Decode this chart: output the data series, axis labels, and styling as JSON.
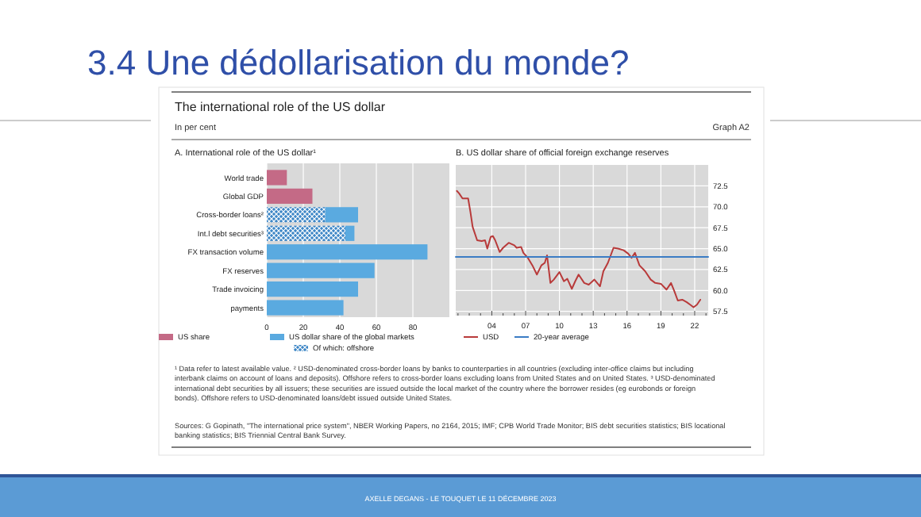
{
  "chart_data": [
    {
      "type": "bar",
      "orientation": "horizontal",
      "stacked": true,
      "title": "A. International role of the US dollar¹",
      "categories": [
        "World trade",
        "Global GDP",
        "Cross-border loans²",
        "Int.l debt securities³",
        "FX transaction volume",
        "FX reserves",
        "Trade invoicing",
        "payments"
      ],
      "series": [
        {
          "name": "US share",
          "color": "#c46a86",
          "values": [
            11,
            25,
            null,
            null,
            null,
            null,
            null,
            null
          ]
        },
        {
          "name": "Of which: offshore",
          "color": "#3d86c6",
          "values": [
            null,
            null,
            32,
            43,
            null,
            null,
            null,
            null
          ]
        },
        {
          "name": "US dollar share of the global markets",
          "color": "#5aaae0",
          "values": [
            null,
            null,
            18,
            5,
            88,
            59,
            50,
            42
          ]
        }
      ],
      "xlim": [
        0,
        100
      ],
      "xticks": [
        0,
        20,
        40,
        60,
        80
      ],
      "grid": "x",
      "legend": "bottom",
      "annotations": [
        "3.4 Une dédollarisation du monde?",
        "The international role of the US dollar",
        "In per cent",
        "Graph A2",
        "¹ Data refer to latest available value.   ² USD-denominated cross-border loans by banks to counterparties in all countries (excluding inter-office claims but including interbank claims on account of loans and deposits). Offshore refers to cross-border loans excluding loans from United States and on United States.   ³ USD-denominated international debt securities by all issuers; these securities are issued outside the local market of the country where the borrower resides (eg eurobonds or foreign bonds). Offshore refers to USD-denominated loans/debt issued outside United States.",
        "Sources: G Gopinath, \"The international price system\", NBER Working Papers, no 2164, 2015; IMF; CPB World Trade Monitor; BIS debt securities statistics; BIS locational banking statistics; BIS Triennial Central Bank Survey.",
        "AXELLE DEGANS - LE TOUQUET LE 11 DÉCEMBRE 2023"
      ]
    },
    {
      "type": "line",
      "title": "B. US dollar share of official foreign exchange reserves",
      "series": [
        {
          "name": "USD",
          "color": "#b83a3a",
          "x": [
            2000.9,
            2001.1,
            2001.4,
            2001.9,
            2002.1,
            2002.3,
            2002.7,
            2003.1,
            2003.4,
            2003.6,
            2003.9,
            2004.1,
            2004.3,
            2004.7,
            2005.0,
            2005.5,
            2006.0,
            2006.2,
            2006.6,
            2006.8,
            2007.2,
            2007.6,
            2008.0,
            2008.4,
            2008.7,
            2008.9,
            2009.2,
            2009.5,
            2010.0,
            2010.4,
            2010.7,
            2011.1,
            2011.4,
            2011.7,
            2012.2,
            2012.6,
            2013.1,
            2013.6,
            2013.9,
            2014.3,
            2014.8,
            2015.2,
            2015.7,
            2016.1,
            2016.4,
            2016.7,
            2017.1,
            2017.6,
            2018.1,
            2018.5,
            2019.0,
            2019.5,
            2019.9,
            2020.2,
            2020.5,
            2020.9,
            2021.3,
            2021.6,
            2021.9,
            2022.2,
            2022.5
          ],
          "values": [
            71.9,
            71.6,
            71.0,
            71.0,
            69.4,
            67.6,
            66.0,
            65.9,
            66.0,
            65.0,
            66.4,
            66.5,
            66.0,
            64.6,
            65.1,
            65.7,
            65.4,
            65.1,
            65.2,
            64.5,
            63.9,
            63.0,
            61.9,
            63.0,
            63.3,
            64.2,
            60.9,
            61.3,
            62.2,
            61.1,
            61.4,
            60.2,
            61.1,
            61.9,
            60.9,
            60.7,
            61.3,
            60.5,
            62.3,
            63.3,
            65.1,
            65.0,
            64.8,
            64.4,
            63.9,
            64.5,
            63.0,
            62.3,
            61.3,
            60.9,
            60.8,
            60.1,
            60.9,
            59.9,
            58.8,
            58.9,
            58.6,
            58.3,
            58.0,
            58.3,
            58.9
          ]
        },
        {
          "name": "20-year average",
          "color": "#3b7cc4",
          "x": [
            2000.8,
            2023.2
          ],
          "values": [
            64.0,
            64.0
          ]
        }
      ],
      "xlim": [
        2000.8,
        2023.2
      ],
      "xticks": [
        {
          "value": 2001,
          "label": null
        },
        {
          "value": 2002,
          "label": null
        },
        {
          "value": 2003,
          "label": null
        },
        {
          "value": 2004,
          "label": "04"
        },
        {
          "value": 2005,
          "label": null
        },
        {
          "value": 2006,
          "label": null
        },
        {
          "value": 2007,
          "label": "07"
        },
        {
          "value": 2008,
          "label": null
        },
        {
          "value": 2009,
          "label": null
        },
        {
          "value": 2010,
          "label": "10"
        },
        {
          "value": 2011,
          "label": null
        },
        {
          "value": 2012,
          "label": null
        },
        {
          "value": 2013,
          "label": "13"
        },
        {
          "value": 2014,
          "label": null
        },
        {
          "value": 2015,
          "label": null
        },
        {
          "value": 2016,
          "label": "16"
        },
        {
          "value": 2017,
          "label": null
        },
        {
          "value": 2018,
          "label": null
        },
        {
          "value": 2019,
          "label": "19"
        },
        {
          "value": 2020,
          "label": null
        },
        {
          "value": 2021,
          "label": null
        },
        {
          "value": 2022,
          "label": "22"
        },
        {
          "value": 2023,
          "label": null
        }
      ],
      "ylim": [
        57,
        75
      ],
      "yticks": [
        57.5,
        {
          "value": 60,
          "label": "60.0"
        },
        62.5,
        {
          "value": 65,
          "label": "65.0"
        },
        67.5,
        {
          "value": 70,
          "label": "70.0"
        },
        72.5
      ],
      "grid": true,
      "legend": "bottom"
    }
  ]
}
